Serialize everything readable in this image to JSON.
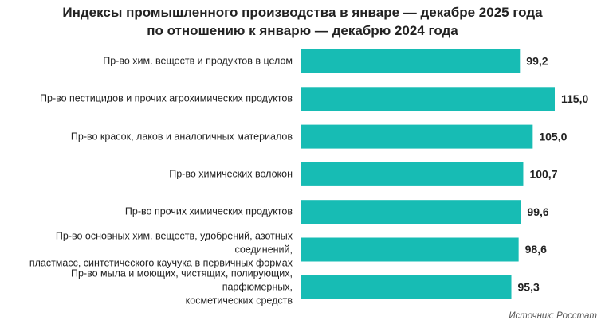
{
  "chart_data": {
    "type": "bar",
    "orientation": "horizontal",
    "title": "Индексы промышленного производства в январе — декабре 2025 года\nпо отношению к январю — декабрю 2024 года",
    "categories": [
      "Пр-во хим. веществ и продуктов в целом",
      "Пр-во пестицидов и прочих агрохимических продуктов",
      "Пр-во красок, лаков и аналогичных материалов",
      "Пр-во химических волокон",
      "Пр-во прочих химических продуктов",
      "Пр-во основных хим. веществ, удобрений, азотных соединений,\nпластмасс, синтетического каучука в первичных формах",
      "Пр-во мыла и моющих, чистящих, полирующих, парфюмерных,\nкосметических средств"
    ],
    "values": [
      99.2,
      115.0,
      105.0,
      100.7,
      99.6,
      98.6,
      95.3
    ],
    "value_labels": [
      "99,2",
      "115,0",
      "105,0",
      "100,7",
      "99,6",
      "98,6",
      "95,3"
    ],
    "color": "#17bcb4",
    "source": "Источник: Росстат"
  }
}
